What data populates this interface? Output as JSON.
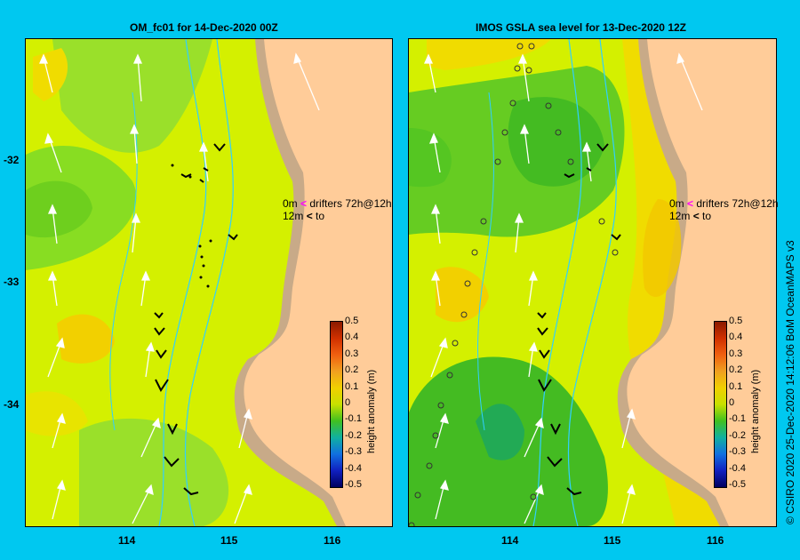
{
  "left_panel": {
    "title": "OM_fc01  for 14-Dec-2020 00Z",
    "lat_ticks": [
      "-32",
      "-33",
      "-34"
    ],
    "lon_ticks": [
      "114",
      "115",
      "116"
    ]
  },
  "right_panel": {
    "title": "IMOS  GSLA sea level   for 13-Dec-2020 12Z",
    "lon_ticks": [
      "114",
      "115",
      "116"
    ]
  },
  "drifter_legend": {
    "line1_depth": "0m",
    "line1_text": "drifters 72h@12h",
    "line2_depth": "12m",
    "line2_text": "to"
  },
  "colorbar": {
    "label": "height anomaly (m)",
    "ticks": [
      "0.5",
      "0.4",
      "0.3",
      "0.2",
      "0.1",
      "0",
      "-0.1",
      "-0.2",
      "-0.3",
      "-0.4",
      "-0.5"
    ],
    "range": [
      -0.5,
      0.5
    ]
  },
  "credit": "© CSIRO 2020    25-Dec-2020 14:12:06 BoM OceanMAPS v3",
  "colors": {
    "background": "#00c8f0",
    "land": "#ffcc99",
    "shelf": "#c8aa88",
    "drifter_surface": "#ff00ff",
    "drifter_12m": "#000000"
  }
}
